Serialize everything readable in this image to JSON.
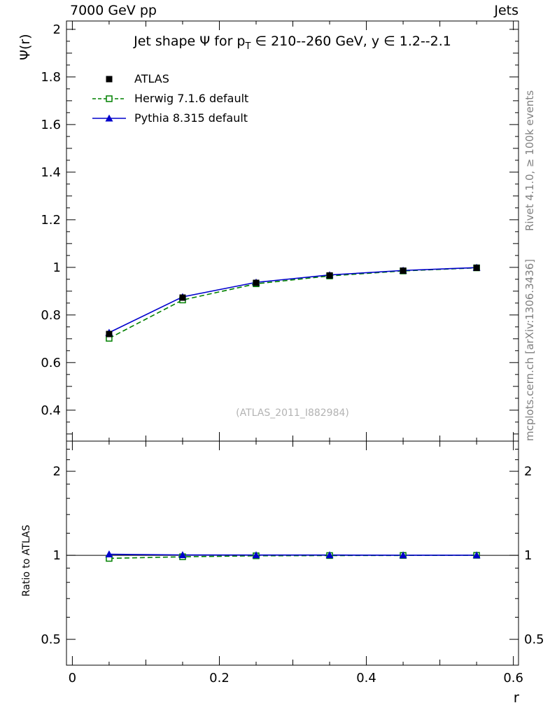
{
  "header": {
    "beam": "7000 GeV pp",
    "analysis": "Jets"
  },
  "right_margin": {
    "top_label": "Rivet 4.1.0, ≥ 100k events",
    "bottom_label": "mcplots.cern.ch [arXiv:1306.3436]"
  },
  "watermark": "(ATLAS_2011_I882984)",
  "main_panel": {
    "ylabel": "Ψ(r)"
  },
  "ratio_panel": {
    "ylabel": "Ratio to ATLAS"
  },
  "xlabel": "r",
  "chart_data": {
    "type": "line",
    "title": "Jet shape Ψ for p_T ∈ 210--260 GeV, y ∈ 1.2--2.1",
    "title_parts": {
      "pre": "Jet shape Ψ for p",
      "sub": "T",
      "post": " ∈ 210--260 GeV, y ∈ 1.2--2.1"
    },
    "x": [
      0.05,
      0.15,
      0.25,
      0.35,
      0.45,
      0.55
    ],
    "series": [
      {
        "name": "ATLAS",
        "color": "#000000",
        "marker": "square_filled",
        "line": "none",
        "is_reference": true,
        "values": [
          0.72,
          0.873,
          0.935,
          0.966,
          0.986,
          0.998
        ],
        "ratio": null
      },
      {
        "name": "Herwig 7.1.6 default",
        "color": "#008000",
        "marker": "square_open",
        "line": "dashed",
        "is_reference": false,
        "values": [
          0.702,
          0.863,
          0.931,
          0.964,
          0.985,
          0.998
        ],
        "ratio": [
          0.975,
          0.988,
          0.996,
          0.998,
          0.999,
          1.0
        ]
      },
      {
        "name": "Pythia 8.315 default",
        "color": "#0000cc",
        "marker": "triangle_filled",
        "line": "solid",
        "is_reference": false,
        "values": [
          0.726,
          0.876,
          0.937,
          0.968,
          0.987,
          0.999
        ],
        "ratio": [
          1.009,
          1.003,
          1.002,
          1.002,
          1.001,
          1.001
        ]
      }
    ],
    "x_axis": {
      "label": "r",
      "lim": [
        -0.008,
        0.607
      ],
      "major_ticks": [
        0,
        0.2,
        0.4,
        0.6
      ],
      "major_labels": [
        "0",
        "0.2",
        "0.4",
        "0.6"
      ],
      "minor_step": 0.05
    },
    "main_axis": {
      "label": "Ψ(r)",
      "scale": "linear",
      "lim": [
        0.27,
        2.035
      ],
      "major_ticks": [
        0.4,
        0.6,
        0.8,
        1.0,
        1.2,
        1.4,
        1.6,
        1.8,
        2.0
      ],
      "major_labels": [
        "0.4",
        "0.6",
        "0.8",
        "1",
        "1.2",
        "1.4",
        "1.6",
        "1.8",
        "2"
      ],
      "minor_step": 0.05
    },
    "ratio_axis": {
      "label": "Ratio to ATLAS",
      "scale": "log",
      "lim": [
        0.404,
        2.565
      ],
      "major_ticks": [
        0.5,
        1,
        2
      ],
      "major_labels": [
        "0.5",
        "1",
        "2"
      ],
      "minor_ticks": [
        0.6,
        0.7,
        0.8,
        0.9,
        1.2,
        1.4,
        1.6,
        1.8,
        2.2,
        2.4
      ],
      "reference": 1
    }
  }
}
